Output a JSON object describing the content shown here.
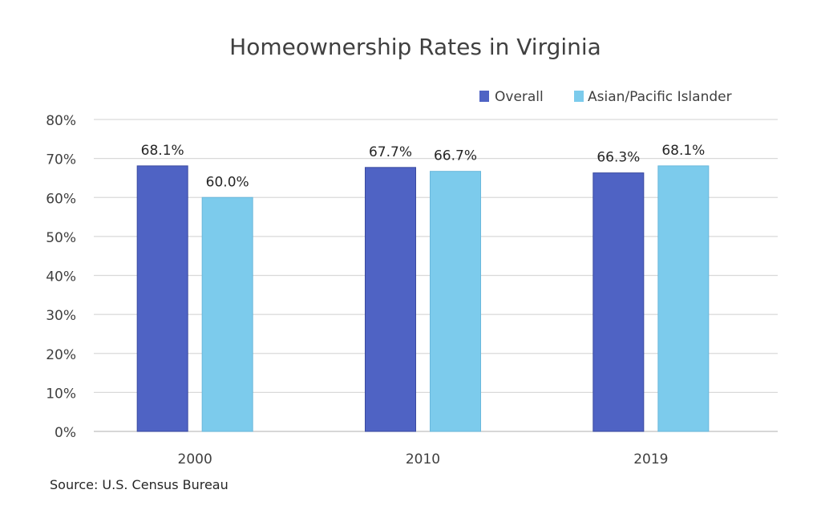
{
  "chart_data": {
    "type": "bar",
    "title": "Homeownership  Rates in Virginia",
    "categories": [
      "2000",
      "2010",
      "2019"
    ],
    "series": [
      {
        "name": "Overall",
        "values": [
          68.1,
          67.7,
          66.3
        ],
        "labels": [
          "68.1%",
          "67.7%",
          "66.3%"
        ],
        "color": "#4f63c4"
      },
      {
        "name": "Asian/Pacific Islander",
        "values": [
          60.0,
          66.7,
          68.1
        ],
        "labels": [
          "60.0%",
          "66.7%",
          "68.1%"
        ],
        "color": "#7ccbec"
      }
    ],
    "ylim": [
      0,
      80
    ],
    "yticks": [
      "0%",
      "10%",
      "20%",
      "30%",
      "40%",
      "50%",
      "60%",
      "70%",
      "80%"
    ],
    "xlabel": "",
    "ylabel": "",
    "grid": true,
    "legend": "top-right",
    "source": "Source: U.S. Census Bureau"
  }
}
